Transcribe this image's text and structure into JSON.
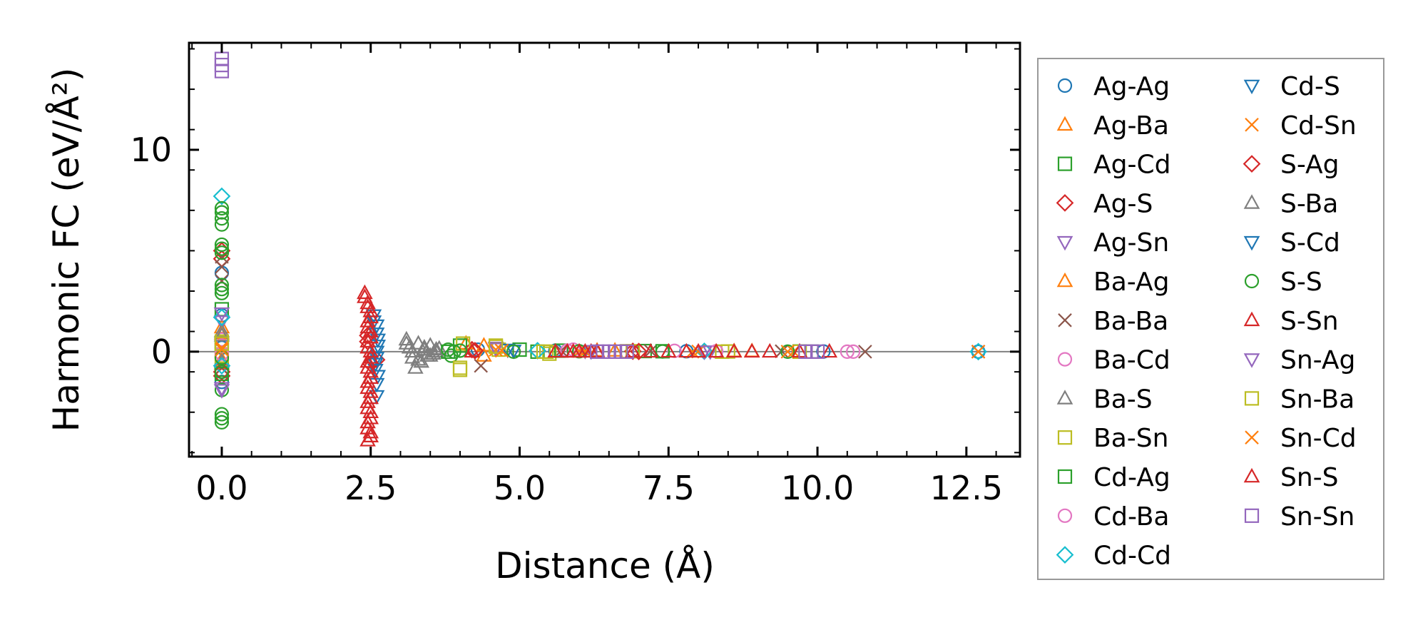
{
  "chart_data": {
    "type": "scatter",
    "title": "",
    "xlabel": "Distance (Å)",
    "ylabel": "Harmonic FC (eV/Å²)",
    "xlim": [
      -0.55,
      13.4
    ],
    "ylim": [
      -5.2,
      15.3
    ],
    "xticks": [
      0.0,
      2.5,
      5.0,
      7.5,
      10.0,
      12.5
    ],
    "xtick_labels": [
      "0.0",
      "2.5",
      "5.0",
      "7.5",
      "10.0",
      "12.5"
    ],
    "yticks": [
      0,
      10
    ],
    "ytick_labels": [
      "0",
      "10"
    ],
    "hline": 0,
    "legend_position": "outside-right",
    "series": [
      {
        "name": "Ag-Ag",
        "marker": "circle",
        "color": "#1f77b4",
        "points": [
          [
            0,
            3.9
          ],
          [
            0,
            1.8
          ],
          [
            0,
            0.2
          ],
          [
            0,
            -1.5
          ],
          [
            4.3,
            0.1
          ],
          [
            5.6,
            0.05
          ],
          [
            7.8,
            0.02
          ],
          [
            10.1,
            0.01
          ],
          [
            12.7,
            0.0
          ]
        ]
      },
      {
        "name": "Ag-Ba",
        "marker": "triangle-up",
        "color": "#ff7f0e",
        "points": [
          [
            0,
            1.2
          ],
          [
            0,
            -0.6
          ],
          [
            4.1,
            0.4
          ],
          [
            4.4,
            -0.2
          ],
          [
            6.3,
            0.05
          ],
          [
            8.6,
            0.02
          ]
        ]
      },
      {
        "name": "Ag-Cd",
        "marker": "square",
        "color": "#2ca02c",
        "points": [
          [
            0,
            2.1
          ],
          [
            0,
            -0.9
          ],
          [
            4.0,
            0.3
          ],
          [
            5.3,
            0.0
          ],
          [
            7.1,
            0.03
          ],
          [
            9.7,
            0.01
          ]
        ]
      },
      {
        "name": "Ag-S",
        "marker": "diamond",
        "color": "#d62728",
        "points": [
          [
            0,
            5.0
          ],
          [
            0,
            4.6
          ],
          [
            0,
            -1.2
          ],
          [
            2.45,
            0.5
          ],
          [
            2.6,
            -0.4
          ],
          [
            4.2,
            0.1
          ],
          [
            6.9,
            0.02
          ]
        ]
      },
      {
        "name": "Ag-Sn",
        "marker": "triangle-down",
        "color": "#9467bd",
        "points": [
          [
            0,
            1.5
          ],
          [
            0,
            -1.8
          ],
          [
            4.6,
            0.2
          ],
          [
            6.1,
            0.04
          ],
          [
            8.2,
            0.01
          ]
        ]
      },
      {
        "name": "Ba-Ag",
        "marker": "triangle-up",
        "color": "#ff7f0e",
        "points": [
          [
            0,
            0.9
          ],
          [
            0,
            -0.4
          ],
          [
            4.4,
            0.3
          ],
          [
            6.6,
            0.05
          ],
          [
            8.9,
            0.02
          ]
        ]
      },
      {
        "name": "Ba-Ba",
        "marker": "x",
        "color": "#8c564b",
        "points": [
          [
            0,
            4.7
          ],
          [
            0,
            4.2
          ],
          [
            0,
            3.5
          ],
          [
            0,
            -0.8
          ],
          [
            4.35,
            -0.7
          ],
          [
            5.7,
            0.05
          ],
          [
            7.2,
            0.03
          ],
          [
            9.4,
            0.02
          ],
          [
            10.8,
            0.0
          ],
          [
            12.7,
            0.0
          ]
        ]
      },
      {
        "name": "Ba-Cd",
        "marker": "circle",
        "color": "#e377c2",
        "points": [
          [
            0,
            0.6
          ],
          [
            0,
            -0.3
          ],
          [
            5.9,
            0.1
          ],
          [
            7.6,
            0.04
          ],
          [
            10.6,
            0.0
          ]
        ]
      },
      {
        "name": "Ba-S",
        "marker": "triangle-up",
        "color": "#7f7f7f",
        "points": [
          [
            0,
            1.0
          ],
          [
            0,
            -0.5
          ],
          [
            3.1,
            0.6
          ],
          [
            3.15,
            0.2
          ],
          [
            3.2,
            -0.3
          ],
          [
            3.25,
            -0.8
          ],
          [
            3.3,
            0.4
          ],
          [
            3.35,
            -0.5
          ],
          [
            3.4,
            0.1
          ],
          [
            3.45,
            -0.2
          ],
          [
            3.5,
            0.3
          ],
          [
            3.55,
            -0.1
          ],
          [
            3.6,
            0.0
          ],
          [
            3.65,
            0.15
          ]
        ]
      },
      {
        "name": "Ba-Sn",
        "marker": "square",
        "color": "#bcbd22",
        "points": [
          [
            0,
            0.5
          ],
          [
            0,
            -0.2
          ],
          [
            4.0,
            -0.9
          ],
          [
            4.05,
            0.4
          ],
          [
            4.6,
            0.3
          ],
          [
            4.65,
            0.1
          ],
          [
            5.45,
            0.0
          ],
          [
            5.5,
            -0.1
          ],
          [
            6.9,
            0.02
          ],
          [
            8.5,
            0.01
          ],
          [
            9.7,
            0.0
          ]
        ]
      },
      {
        "name": "Cd-Ag",
        "marker": "square",
        "color": "#2ca02c",
        "points": [
          [
            0,
            -1.1
          ],
          [
            0,
            0.4
          ],
          [
            3.8,
            0.0
          ],
          [
            5.0,
            0.1
          ],
          [
            5.7,
            0.05
          ],
          [
            7.4,
            0.02
          ],
          [
            9.9,
            0.0
          ]
        ]
      },
      {
        "name": "Cd-Ba",
        "marker": "circle",
        "color": "#e377c2",
        "points": [
          [
            0,
            0.3
          ],
          [
            0,
            -0.1
          ],
          [
            5.8,
            0.05
          ],
          [
            8.3,
            0.02
          ],
          [
            10.5,
            0.0
          ]
        ]
      },
      {
        "name": "Cd-Cd",
        "marker": "diamond",
        "color": "#17becf",
        "points": [
          [
            0,
            7.7
          ],
          [
            0,
            1.7
          ],
          [
            0,
            -0.7
          ],
          [
            5.3,
            0.05
          ],
          [
            8.1,
            0.02
          ],
          [
            12.7,
            0.0
          ]
        ]
      },
      {
        "name": "Cd-S",
        "marker": "triangle-down",
        "color": "#1f77b4",
        "points": [
          [
            2.55,
            1.8
          ],
          [
            2.6,
            1.3
          ],
          [
            2.62,
            0.6
          ],
          [
            2.6,
            0.0
          ],
          [
            2.58,
            -0.6
          ],
          [
            2.62,
            -1.2
          ],
          [
            2.6,
            -2.2
          ],
          [
            4.8,
            0.1
          ],
          [
            6.2,
            0.02
          ]
        ]
      },
      {
        "name": "Cd-Sn",
        "marker": "x",
        "color": "#ff7f0e",
        "points": [
          [
            0,
            0.2
          ],
          [
            4.6,
            0.1
          ],
          [
            6.0,
            0.03
          ],
          [
            8.0,
            0.01
          ],
          [
            9.6,
            0.0
          ],
          [
            12.7,
            0.0
          ]
        ]
      },
      {
        "name": "S-Ag",
        "marker": "diamond",
        "color": "#d62728",
        "points": [
          [
            0,
            -1.0
          ],
          [
            2.45,
            0.8
          ],
          [
            2.5,
            -0.6
          ],
          [
            4.25,
            0.05
          ],
          [
            7.0,
            0.01
          ]
        ]
      },
      {
        "name": "S-Ba",
        "marker": "triangle-up",
        "color": "#7f7f7f",
        "points": [
          [
            0,
            0.8
          ],
          [
            3.1,
            0.4
          ],
          [
            3.2,
            0.0
          ],
          [
            3.3,
            -0.4
          ],
          [
            3.4,
            0.2
          ],
          [
            3.5,
            -0.2
          ],
          [
            3.6,
            0.1
          ]
        ]
      },
      {
        "name": "S-Cd",
        "marker": "triangle-down",
        "color": "#1f77b4",
        "points": [
          [
            2.55,
            1.5
          ],
          [
            2.6,
            0.9
          ],
          [
            2.62,
            0.3
          ],
          [
            2.6,
            -0.3
          ],
          [
            2.58,
            -0.9
          ],
          [
            2.6,
            -1.6
          ],
          [
            4.9,
            0.05
          ]
        ]
      },
      {
        "name": "S-S",
        "marker": "circle",
        "color": "#2ca02c",
        "points": [
          [
            0,
            7.1
          ],
          [
            0,
            6.9
          ],
          [
            0,
            6.6
          ],
          [
            0,
            6.3
          ],
          [
            0,
            5.3
          ],
          [
            0,
            5.1
          ],
          [
            0,
            4.9
          ],
          [
            0,
            3.3
          ],
          [
            0,
            3.1
          ],
          [
            0,
            2.9
          ],
          [
            0,
            -0.3
          ],
          [
            0,
            -1.0
          ],
          [
            0,
            -1.9
          ],
          [
            0,
            -3.1
          ],
          [
            0,
            -3.3
          ],
          [
            0,
            -3.5
          ],
          [
            3.8,
            0.1
          ],
          [
            3.85,
            -0.2
          ],
          [
            3.9,
            0.0
          ],
          [
            4.0,
            0.05
          ],
          [
            4.9,
            0.0
          ],
          [
            6.0,
            0.02
          ],
          [
            7.4,
            0.01
          ],
          [
            9.5,
            0.0
          ]
        ]
      },
      {
        "name": "S-Sn",
        "marker": "triangle-up",
        "color": "#d62728",
        "points": [
          [
            2.4,
            2.9
          ],
          [
            2.45,
            2.4
          ],
          [
            2.5,
            2.0
          ],
          [
            2.45,
            1.5
          ],
          [
            2.5,
            1.0
          ],
          [
            2.45,
            0.5
          ],
          [
            2.5,
            0.0
          ],
          [
            2.45,
            -0.5
          ],
          [
            2.5,
            -1.0
          ],
          [
            2.45,
            -1.5
          ],
          [
            2.5,
            -2.0
          ],
          [
            2.45,
            -2.5
          ],
          [
            2.5,
            -3.0
          ],
          [
            2.45,
            -3.5
          ],
          [
            2.5,
            -4.0
          ],
          [
            2.45,
            -4.4
          ]
        ]
      },
      {
        "name": "Sn-Ag",
        "marker": "triangle-down",
        "color": "#9467bd",
        "points": [
          [
            0,
            1.9
          ],
          [
            0,
            -1.9
          ],
          [
            4.6,
            0.15
          ],
          [
            6.2,
            0.03
          ],
          [
            8.1,
            0.01
          ]
        ]
      },
      {
        "name": "Sn-Ba",
        "marker": "square",
        "color": "#bcbd22",
        "points": [
          [
            0,
            0.4
          ],
          [
            4.0,
            -0.8
          ],
          [
            4.6,
            0.25
          ],
          [
            5.4,
            0.0
          ],
          [
            6.8,
            0.02
          ],
          [
            8.4,
            0.0
          ],
          [
            9.8,
            0.0
          ]
        ]
      },
      {
        "name": "Sn-Cd",
        "marker": "x",
        "color": "#ff7f0e",
        "points": [
          [
            0,
            0.1
          ],
          [
            4.7,
            0.05
          ],
          [
            6.1,
            0.02
          ],
          [
            7.9,
            0.0
          ],
          [
            9.5,
            0.0
          ]
        ]
      },
      {
        "name": "Sn-S",
        "marker": "triangle-up",
        "color": "#d62728",
        "points": [
          [
            2.4,
            2.7
          ],
          [
            2.45,
            2.2
          ],
          [
            2.5,
            1.7
          ],
          [
            2.45,
            1.2
          ],
          [
            2.5,
            0.7
          ],
          [
            2.45,
            0.2
          ],
          [
            2.5,
            -0.3
          ],
          [
            2.45,
            -0.8
          ],
          [
            2.5,
            -1.3
          ],
          [
            2.45,
            -1.8
          ],
          [
            2.5,
            -2.3
          ],
          [
            2.45,
            -2.8
          ],
          [
            2.5,
            -3.3
          ],
          [
            2.45,
            -3.8
          ],
          [
            2.5,
            -4.2
          ],
          [
            4.2,
            0.0
          ],
          [
            5.6,
            0.0
          ],
          [
            5.8,
            0.0
          ],
          [
            5.9,
            0.0
          ],
          [
            6.0,
            0.0
          ],
          [
            6.1,
            0.0
          ],
          [
            6.2,
            0.0
          ],
          [
            6.3,
            0.0
          ],
          [
            6.9,
            0.0
          ],
          [
            7.2,
            0.0
          ],
          [
            7.5,
            0.0
          ],
          [
            7.8,
            0.0
          ],
          [
            8.0,
            0.0
          ],
          [
            8.3,
            0.0
          ],
          [
            8.6,
            0.0
          ],
          [
            8.9,
            0.0
          ],
          [
            9.2,
            0.0
          ],
          [
            9.7,
            0.0
          ],
          [
            10.2,
            0.0
          ]
        ]
      },
      {
        "name": "Sn-Sn",
        "marker": "square",
        "color": "#9467bd",
        "points": [
          [
            0,
            14.2
          ],
          [
            0,
            13.9
          ],
          [
            0,
            14.5
          ],
          [
            6.3,
            0.0
          ],
          [
            6.4,
            0.0
          ],
          [
            6.5,
            0.0
          ],
          [
            6.6,
            0.0
          ],
          [
            6.7,
            0.0
          ],
          [
            6.8,
            0.0
          ],
          [
            9.8,
            0.0
          ],
          [
            9.9,
            0.0
          ],
          [
            10.0,
            0.0
          ]
        ]
      }
    ]
  }
}
